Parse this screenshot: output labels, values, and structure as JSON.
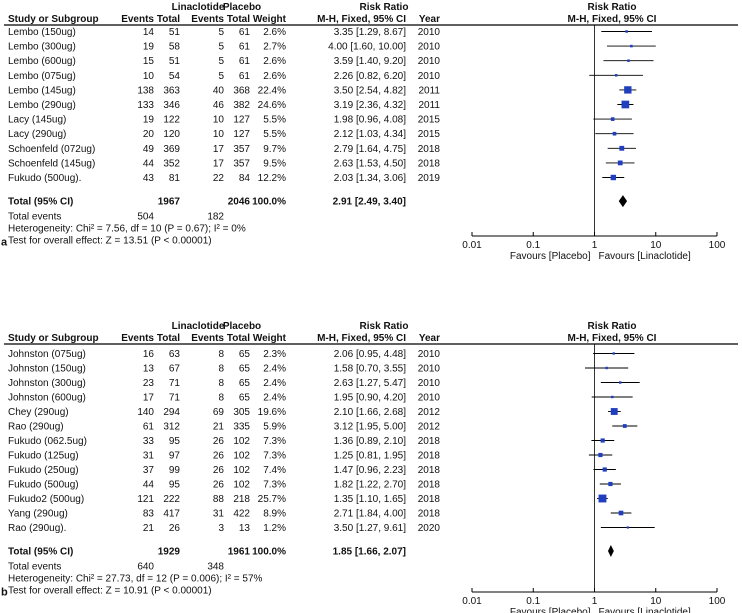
{
  "headers": {
    "study": "Study or Subgroup",
    "treatment": "Linaclotide",
    "control": "Placebo",
    "events": "Events",
    "total": "Total",
    "weight": "Weight",
    "rr_title": "Risk Ratio",
    "rr_method": "M-H, Fixed, 95% CI",
    "year": "Year"
  },
  "colors": {
    "marker": "#1f3fbf",
    "text": "#111111",
    "line": "#000000"
  },
  "chart_data": [
    {
      "type": "forest",
      "panel_label": "a",
      "title": "Risk Ratio",
      "subtitle": "M-H, Fixed, 95% CI",
      "x_scale": "log",
      "xlim": [
        0.01,
        100
      ],
      "ticks": [
        "0.01",
        "0.1",
        "1",
        "10",
        "100"
      ],
      "favours_left": "Favours [Placebo]",
      "favours_right": "Favours [Linaclotide]",
      "studies": [
        {
          "name": "Lembo (150ug)",
          "e1": "14",
          "t1": "51",
          "e2": "5",
          "t2": "61",
          "weight": "2.6%",
          "ci": "3.35 [1.29, 8.67]",
          "year": "2010",
          "rr": 3.35,
          "lo": 1.29,
          "hi": 8.67,
          "w": 2.6
        },
        {
          "name": "Lembo (300ug)",
          "e1": "19",
          "t1": "58",
          "e2": "5",
          "t2": "61",
          "weight": "2.7%",
          "ci": "4.00 [1.60, 10.00]",
          "year": "2010",
          "rr": 4.0,
          "lo": 1.6,
          "hi": 10.0,
          "w": 2.7
        },
        {
          "name": "Lembo (600ug)",
          "e1": "15",
          "t1": "51",
          "e2": "5",
          "t2": "61",
          "weight": "2.6%",
          "ci": "3.59 [1.40, 9.20]",
          "year": "2010",
          "rr": 3.59,
          "lo": 1.4,
          "hi": 9.2,
          "w": 2.6
        },
        {
          "name": "Lembo (075ug)",
          "e1": "10",
          "t1": "54",
          "e2": "5",
          "t2": "61",
          "weight": "2.6%",
          "ci": "2.26 [0.82, 6.20]",
          "year": "2010",
          "rr": 2.26,
          "lo": 0.82,
          "hi": 6.2,
          "w": 2.6
        },
        {
          "name": "Lembo (145ug)",
          "e1": "138",
          "t1": "363",
          "e2": "40",
          "t2": "368",
          "weight": "22.4%",
          "ci": "3.50 [2.54, 4.82]",
          "year": "2011",
          "rr": 3.5,
          "lo": 2.54,
          "hi": 4.82,
          "w": 22.4
        },
        {
          "name": "Lembo (290ug)",
          "e1": "133",
          "t1": "346",
          "e2": "46",
          "t2": "382",
          "weight": "24.6%",
          "ci": "3.19 [2.36, 4.32]",
          "year": "2011",
          "rr": 3.19,
          "lo": 2.36,
          "hi": 4.32,
          "w": 24.6
        },
        {
          "name": "Lacy (145ug)",
          "e1": "19",
          "t1": "122",
          "e2": "10",
          "t2": "127",
          "weight": "5.5%",
          "ci": "1.98 [0.96, 4.08]",
          "year": "2015",
          "rr": 1.98,
          "lo": 0.96,
          "hi": 4.08,
          "w": 5.5
        },
        {
          "name": "Lacy (290ug)",
          "e1": "20",
          "t1": "120",
          "e2": "10",
          "t2": "127",
          "weight": "5.5%",
          "ci": "2.12 [1.03, 4.34]",
          "year": "2015",
          "rr": 2.12,
          "lo": 1.03,
          "hi": 4.34,
          "w": 5.5
        },
        {
          "name": "Schoenfeld (072ug)",
          "e1": "49",
          "t1": "369",
          "e2": "17",
          "t2": "357",
          "weight": "9.7%",
          "ci": "2.79 [1.64, 4.75]",
          "year": "2018",
          "rr": 2.79,
          "lo": 1.64,
          "hi": 4.75,
          "w": 9.7
        },
        {
          "name": "Schoenfeld (145ug)",
          "e1": "44",
          "t1": "352",
          "e2": "17",
          "t2": "357",
          "weight": "9.5%",
          "ci": "2.63 [1.53, 4.50]",
          "year": "2018",
          "rr": 2.63,
          "lo": 1.53,
          "hi": 4.5,
          "w": 9.5
        },
        {
          "name": "Fukudo (500ug).",
          "e1": "43",
          "t1": "81",
          "e2": "22",
          "t2": "84",
          "weight": "12.2%",
          "ci": "2.03 [1.34, 3.06]",
          "year": "2019",
          "rr": 2.03,
          "lo": 1.34,
          "hi": 3.06,
          "w": 12.2
        }
      ],
      "total": {
        "label": "Total (95% CI)",
        "t1": "1967",
        "t2": "2046",
        "weight": "100.0%",
        "ci": "2.91 [2.49, 3.40]",
        "rr": 2.91,
        "lo": 2.49,
        "hi": 3.4
      },
      "total_events": {
        "label": "Total events",
        "e1": "504",
        "e2": "182"
      },
      "heterogeneity": "Heterogeneity: Chi² = 7.56, df = 10 (P = 0.67); I² = 0%",
      "overall": "Test for overall effect: Z = 13.51 (P < 0.00001)"
    },
    {
      "type": "forest",
      "panel_label": "b",
      "title": "Risk Ratio",
      "subtitle": "M-H, Fixed, 95% CI",
      "x_scale": "log",
      "xlim": [
        0.01,
        100
      ],
      "ticks": [
        "0.01",
        "0.1",
        "1",
        "10",
        "100"
      ],
      "favours_left": "Favours [Placebo]",
      "favours_right": "Favours [Linaclotide]",
      "studies": [
        {
          "name": "Johnston (075ug)",
          "e1": "16",
          "t1": "63",
          "e2": "8",
          "t2": "65",
          "weight": "2.3%",
          "ci": "2.06 [0.95, 4.48]",
          "year": "2010",
          "rr": 2.06,
          "lo": 0.95,
          "hi": 4.48,
          "w": 2.3
        },
        {
          "name": "Johnston (150ug)",
          "e1": "13",
          "t1": "67",
          "e2": "8",
          "t2": "65",
          "weight": "2.4%",
          "ci": "1.58 [0.70, 3.55]",
          "year": "2010",
          "rr": 1.58,
          "lo": 0.7,
          "hi": 3.55,
          "w": 2.4
        },
        {
          "name": "Johnston (300ug)",
          "e1": "23",
          "t1": "71",
          "e2": "8",
          "t2": "65",
          "weight": "2.4%",
          "ci": "2.63 [1.27, 5.47]",
          "year": "2010",
          "rr": 2.63,
          "lo": 1.27,
          "hi": 5.47,
          "w": 2.4
        },
        {
          "name": "Johnston (600ug)",
          "e1": "17",
          "t1": "71",
          "e2": "8",
          "t2": "65",
          "weight": "2.4%",
          "ci": "1.95 [0.90, 4.20]",
          "year": "2010",
          "rr": 1.95,
          "lo": 0.9,
          "hi": 4.2,
          "w": 2.4
        },
        {
          "name": "Chey (290ug)",
          "e1": "140",
          "t1": "294",
          "e2": "69",
          "t2": "305",
          "weight": "19.6%",
          "ci": "2.10 [1.66, 2.68]",
          "year": "2012",
          "rr": 2.1,
          "lo": 1.66,
          "hi": 2.68,
          "w": 19.6
        },
        {
          "name": "Rao (290ug)",
          "e1": "61",
          "t1": "312",
          "e2": "21",
          "t2": "335",
          "weight": "5.9%",
          "ci": "3.12 [1.95, 5.00]",
          "year": "2012",
          "rr": 3.12,
          "lo": 1.95,
          "hi": 5.0,
          "w": 5.9
        },
        {
          "name": "Fukudo (062.5ug)",
          "e1": "33",
          "t1": "95",
          "e2": "26",
          "t2": "102",
          "weight": "7.3%",
          "ci": "1.36 [0.89, 2.10]",
          "year": "2018",
          "rr": 1.36,
          "lo": 0.89,
          "hi": 2.1,
          "w": 7.3
        },
        {
          "name": "Fukudo (125ug)",
          "e1": "31",
          "t1": "97",
          "e2": "26",
          "t2": "102",
          "weight": "7.3%",
          "ci": "1.25 [0.81, 1.95]",
          "year": "2018",
          "rr": 1.25,
          "lo": 0.81,
          "hi": 1.95,
          "w": 7.3
        },
        {
          "name": "Fukudo (250ug)",
          "e1": "37",
          "t1": "99",
          "e2": "26",
          "t2": "102",
          "weight": "7.4%",
          "ci": "1.47 [0.96, 2.23]",
          "year": "2018",
          "rr": 1.47,
          "lo": 0.96,
          "hi": 2.23,
          "w": 7.4
        },
        {
          "name": "Fukudo (500ug)",
          "e1": "44",
          "t1": "95",
          "e2": "26",
          "t2": "102",
          "weight": "7.3%",
          "ci": "1.82 [1.22, 2.70]",
          "year": "2018",
          "rr": 1.82,
          "lo": 1.22,
          "hi": 2.7,
          "w": 7.3
        },
        {
          "name": "Fukudo2 (500ug)",
          "e1": "121",
          "t1": "222",
          "e2": "88",
          "t2": "218",
          "weight": "25.7%",
          "ci": "1.35 [1.10, 1.65]",
          "year": "2018",
          "rr": 1.35,
          "lo": 1.1,
          "hi": 1.65,
          "w": 25.7
        },
        {
          "name": "Yang (290ug)",
          "e1": "83",
          "t1": "417",
          "e2": "31",
          "t2": "422",
          "weight": "8.9%",
          "ci": "2.71 [1.84, 4.00]",
          "year": "2018",
          "rr": 2.71,
          "lo": 1.84,
          "hi": 4.0,
          "w": 8.9
        },
        {
          "name": "Rao (290ug).",
          "e1": "21",
          "t1": "26",
          "e2": "3",
          "t2": "13",
          "weight": "1.2%",
          "ci": "3.50 [1.27, 9.61]",
          "year": "2020",
          "rr": 3.5,
          "lo": 1.27,
          "hi": 9.61,
          "w": 1.2
        }
      ],
      "total": {
        "label": "Total (95% CI)",
        "t1": "1929",
        "t2": "1961",
        "weight": "100.0%",
        "ci": "1.85 [1.66, 2.07]",
        "rr": 1.85,
        "lo": 1.66,
        "hi": 2.07
      },
      "total_events": {
        "label": "Total events",
        "e1": "640",
        "e2": "348"
      },
      "heterogeneity": "Heterogeneity: Chi² = 27.73, df = 12 (P = 0.006); I² = 57%",
      "overall": "Test for overall effect: Z = 10.91 (P < 0.00001)"
    }
  ]
}
